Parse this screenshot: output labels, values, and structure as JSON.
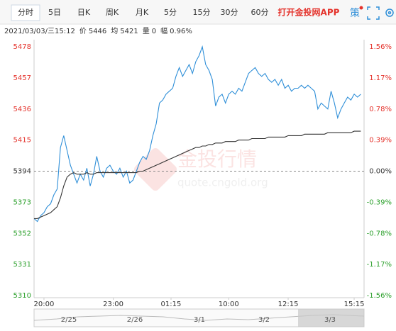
{
  "tabs": [
    "分时",
    "5日",
    "日K",
    "周K",
    "月K",
    "5分",
    "15分",
    "30分",
    "60分"
  ],
  "app_link": "打开金投网APP",
  "strategy": "策",
  "info": {
    "time": "2021/03/03/三15:12",
    "price_label": "价",
    "price": 5446,
    "avg_label": "均",
    "avg": 5421,
    "volume_label": "量",
    "volume": 0,
    "change_label": "幅",
    "change": "0.96%"
  },
  "watermark": {
    "brand": "金投行情",
    "url": "quote.cngold.org"
  },
  "navigator": {
    "dates": [
      "2/25",
      "2/26",
      "3/1",
      "3/2",
      "3/3"
    ]
  },
  "chart_data": {
    "type": "line",
    "ylim": [
      5310,
      5478
    ],
    "yticks": [
      5478,
      5457,
      5436,
      5415,
      5394,
      5373,
      5352,
      5331,
      5310
    ],
    "y2lim": [
      -1.56,
      1.56
    ],
    "y2ticks": [
      {
        "value": 1.56,
        "label": "1.56%"
      },
      {
        "value": 1.17,
        "label": "1.17%"
      },
      {
        "value": 0.78,
        "label": "0.78%"
      },
      {
        "value": 0.39,
        "label": "0.39%"
      },
      {
        "value": 0,
        "label": "0.00%"
      },
      {
        "value": -0.39,
        "label": "-0.39%"
      },
      {
        "value": -0.78,
        "label": "-0.78%"
      },
      {
        "value": -1.17,
        "label": "-1.17%"
      },
      {
        "value": -1.56,
        "label": "-1.56%"
      }
    ],
    "up_color": "#e4322b",
    "down_color": "#2ca02c",
    "flat_color": "#333333",
    "xlim": [
      0,
      100
    ],
    "xticks": [
      {
        "value": 3,
        "label": "20:00"
      },
      {
        "value": 24,
        "label": "23:00"
      },
      {
        "value": 41.5,
        "label": "01:15"
      },
      {
        "value": 59,
        "label": "10:00"
      },
      {
        "value": 77,
        "label": "12:15"
      },
      {
        "value": 97,
        "label": "15:15"
      }
    ],
    "series": [
      {
        "name": "价",
        "color": "#2f8fd8",
        "values": [
          5362,
          5360,
          5364,
          5366,
          5370,
          5372,
          5378,
          5382,
          5410,
          5418,
          5408,
          5398,
          5392,
          5386,
          5392,
          5388,
          5396,
          5384,
          5392,
          5404,
          5394,
          5390,
          5396,
          5398,
          5394,
          5392,
          5396,
          5390,
          5394,
          5386,
          5388,
          5394,
          5400,
          5404,
          5402,
          5408,
          5418,
          5426,
          5440,
          5442,
          5446,
          5448,
          5450,
          5458,
          5464,
          5458,
          5462,
          5466,
          5460,
          5468,
          5472,
          5478,
          5466,
          5462,
          5456,
          5438,
          5444,
          5446,
          5440,
          5446,
          5448,
          5446,
          5450,
          5448,
          5454,
          5460,
          5462,
          5464,
          5460,
          5458,
          5460,
          5456,
          5454,
          5456,
          5452,
          5456,
          5450,
          5452,
          5448,
          5450,
          5450,
          5452,
          5450,
          5452,
          5450,
          5448,
          5436,
          5440,
          5438,
          5436,
          5448,
          5440,
          5430,
          5436,
          5440,
          5444,
          5442,
          5446,
          5444,
          5446
        ]
      },
      {
        "name": "均",
        "color": "#333333",
        "values": [
          5362,
          5362,
          5363,
          5364,
          5365,
          5366,
          5368,
          5370,
          5376,
          5384,
          5390,
          5392,
          5393,
          5392,
          5392,
          5392,
          5393,
          5392,
          5392,
          5393,
          5393,
          5393,
          5393,
          5393,
          5393,
          5393,
          5393,
          5393,
          5393,
          5393,
          5393,
          5393,
          5394,
          5394,
          5395,
          5396,
          5397,
          5398,
          5399,
          5400,
          5401,
          5402,
          5403,
          5404,
          5405,
          5406,
          5407,
          5408,
          5409,
          5410,
          5410,
          5411,
          5411,
          5412,
          5412,
          5413,
          5413,
          5413,
          5414,
          5414,
          5414,
          5414,
          5415,
          5415,
          5415,
          5415,
          5416,
          5416,
          5416,
          5416,
          5416,
          5417,
          5417,
          5417,
          5417,
          5417,
          5417,
          5418,
          5418,
          5418,
          5418,
          5418,
          5419,
          5419,
          5419,
          5419,
          5419,
          5419,
          5419,
          5420,
          5420,
          5420,
          5420,
          5420,
          5420,
          5420,
          5420,
          5421,
          5421,
          5421
        ]
      }
    ]
  }
}
